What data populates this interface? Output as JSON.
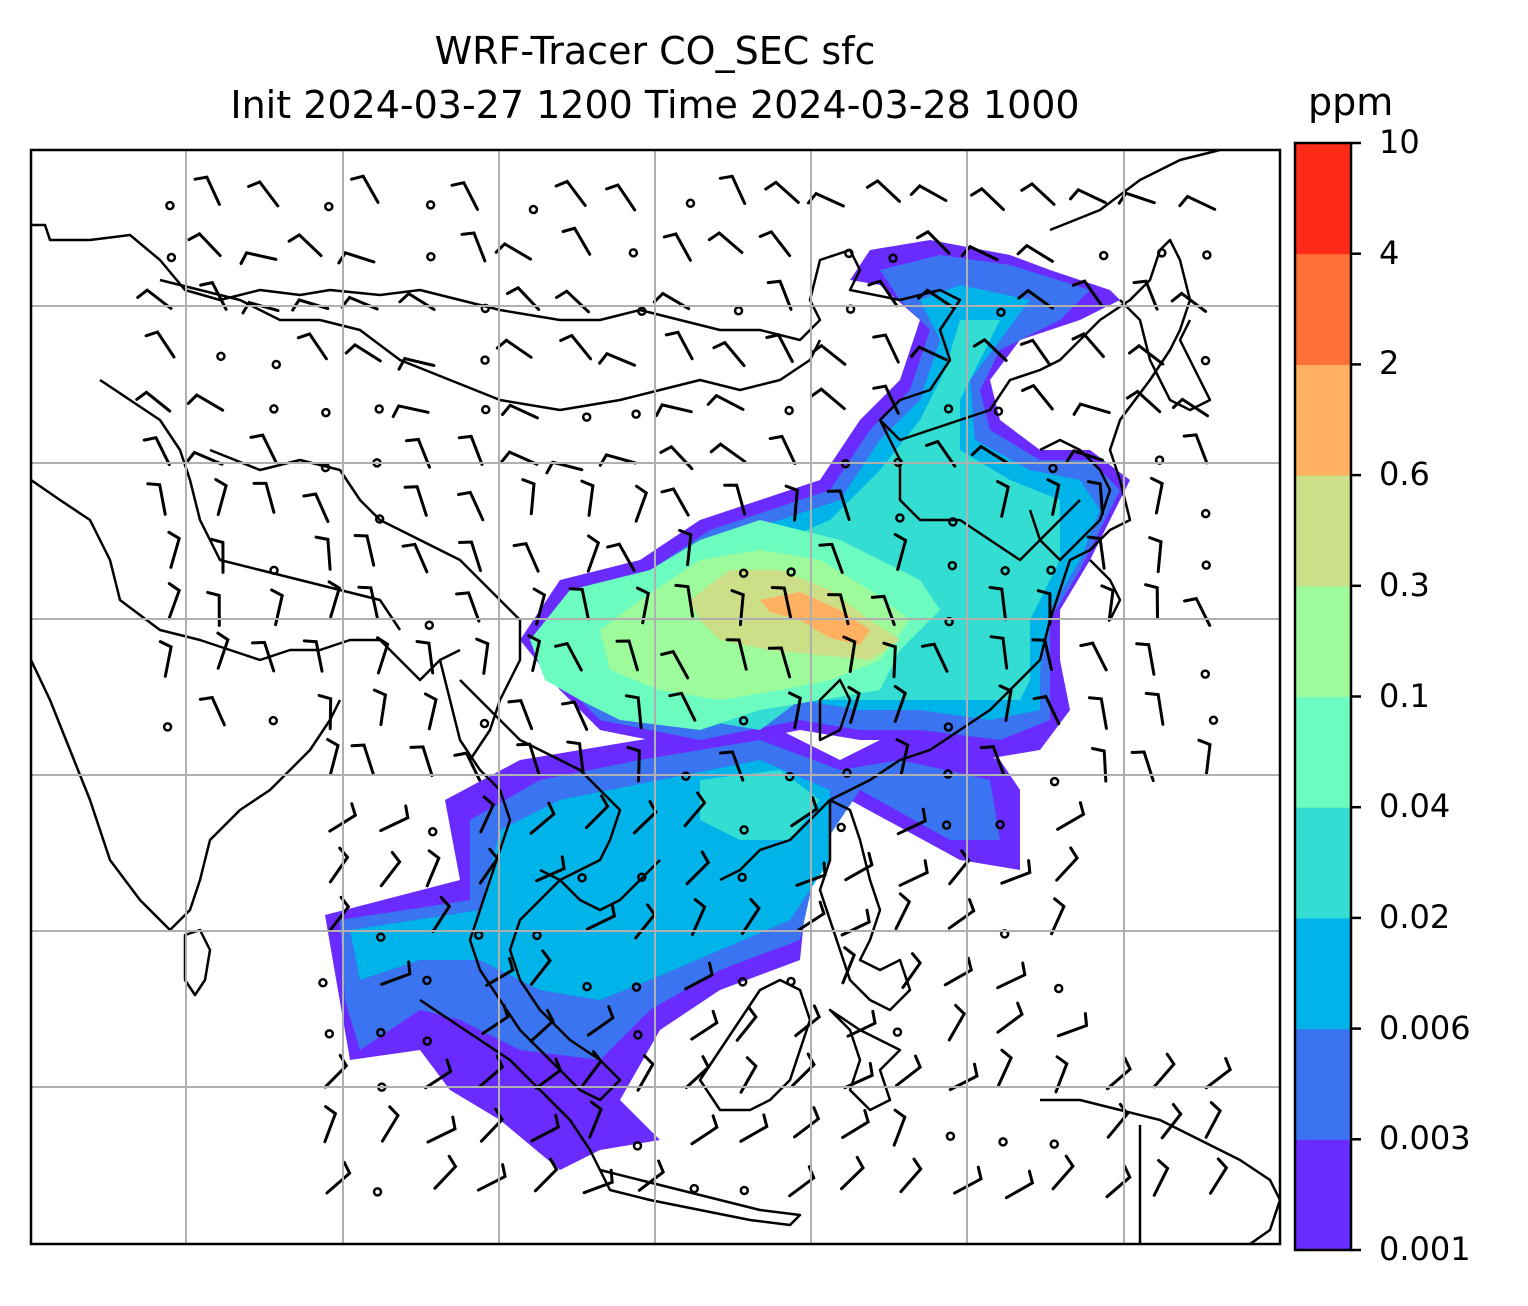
{
  "chart_data": {
    "type": "heatmap",
    "title": "WRF-Tracer CO_SEC sfc",
    "subtitle": "Init 2024-03-27 1200 Time 2024-03-28 1000",
    "colorbar": {
      "unit": "ppm",
      "levels": [
        "0.001",
        "0.003",
        "0.006",
        "0.02",
        "0.04",
        "0.1",
        "0.3",
        "0.6",
        "2",
        "4",
        "10"
      ],
      "colors": [
        "#6a2bff",
        "#3a74f0",
        "#00b4ea",
        "#33ddd2",
        "#6dfcc0",
        "#9dfb9b",
        "#ccdf86",
        "#ffb060",
        "#ff7038",
        "#ff2a18"
      ]
    },
    "grid": true,
    "features": [
      "coastlines",
      "country borders",
      "wind barbs",
      "calm wind circles",
      "shaded tracer concentration"
    ]
  }
}
